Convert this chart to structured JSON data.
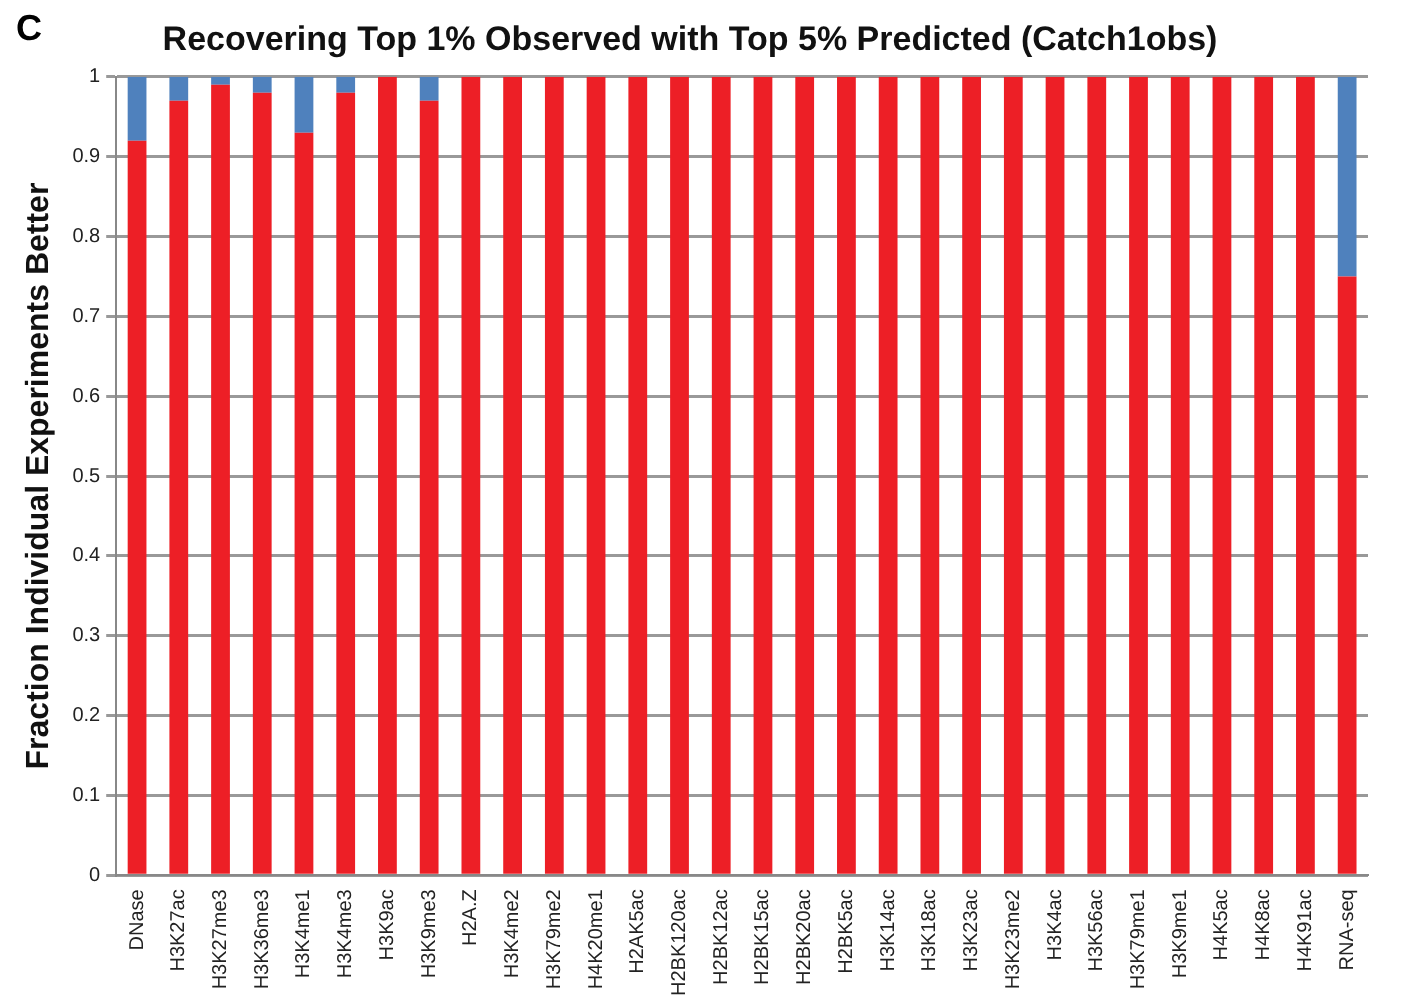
{
  "chart_data": {
    "type": "bar",
    "stacked": true,
    "title": "Recovering Top 1% Observed with Top 5% Predicted (Catch1obs)",
    "ylabel": "Fraction Individual Experiments Better",
    "annotations": [
      "C"
    ],
    "categories": [
      "DNase",
      "H3K27ac",
      "H3K27me3",
      "H3K36me3",
      "H3K4me1",
      "H3K4me3",
      "H3K9ac",
      "H3K9me3",
      "H2A.Z",
      "H3K4me2",
      "H3K79me2",
      "H4K20me1",
      "H2AK5ac",
      "H2BK120ac",
      "H2BK12ac",
      "H2BK15ac",
      "H2BK20ac",
      "H2BK5ac",
      "H3K14ac",
      "H3K18ac",
      "H3K23ac",
      "H3K23me2",
      "H3K4ac",
      "H3K56ac",
      "H3K79me1",
      "H3K9me1",
      "H4K5ac",
      "H4K8ac",
      "H4K91ac",
      "RNA-seq"
    ],
    "series": [
      {
        "color": "#ed1f26",
        "values": [
          0.92,
          0.97,
          0.99,
          0.98,
          0.93,
          0.98,
          1,
          0.97,
          1,
          1,
          1,
          1,
          1,
          1,
          1,
          1,
          1,
          1,
          1,
          1,
          1,
          1,
          1,
          1,
          1,
          1,
          1,
          1,
          1,
          0.75
        ]
      },
      {
        "color": "#4f81bd",
        "values": [
          0.08,
          0.03,
          0.01,
          0.02,
          0.07,
          0.02,
          0,
          0.03,
          0,
          0,
          0,
          0,
          0,
          0,
          0,
          0,
          0,
          0,
          0,
          0,
          0,
          0,
          0,
          0,
          0,
          0,
          0,
          0,
          0,
          0.25
        ]
      }
    ],
    "ylim": [
      0,
      1
    ],
    "yticks": [
      0,
      0.1,
      0.2,
      0.3,
      0.4,
      0.5,
      0.6,
      0.7,
      0.8,
      0.9,
      1
    ],
    "grid": "y"
  }
}
